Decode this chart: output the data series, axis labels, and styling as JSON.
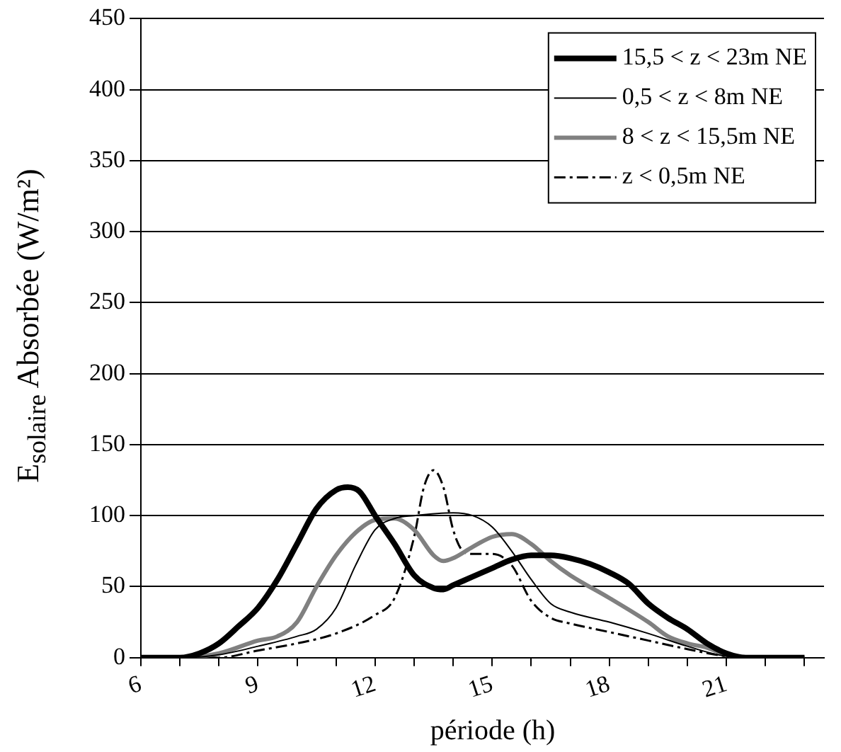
{
  "chart_data": {
    "type": "line",
    "xlabel": "période (h)",
    "ylabel": "E$_{solaire}$ Absorbée (W/m²)",
    "xlim": [
      6,
      23.5
    ],
    "xticks": [
      6,
      {
        "value": 7,
        "label": null
      },
      {
        "value": 8,
        "label": null
      },
      9,
      {
        "value": 10,
        "label": null
      },
      {
        "value": 11,
        "label": null
      },
      12,
      {
        "value": 13,
        "label": null
      },
      {
        "value": 14,
        "label": null
      },
      15,
      {
        "value": 16,
        "label": null
      },
      {
        "value": 17,
        "label": null
      },
      18,
      {
        "value": 19,
        "label": null
      },
      {
        "value": 20,
        "label": null
      },
      21,
      {
        "value": 22,
        "label": null
      },
      {
        "value": 23,
        "label": null
      }
    ],
    "ylim": [
      0,
      450
    ],
    "yticks": [
      0,
      50,
      100,
      150,
      200,
      250,
      300,
      350,
      400,
      450
    ],
    "grid": "y",
    "legend": "top right",
    "marker": "none",
    "series": [
      {
        "name": "15,5 < z < 23m NE",
        "color": "#000000",
        "x": [
          6,
          7,
          7.5,
          8,
          8.5,
          9,
          9.5,
          10,
          10.5,
          11,
          11.3,
          11.6,
          12,
          12.5,
          13,
          13.5,
          13.75,
          14,
          14.5,
          15,
          15.5,
          16,
          16.5,
          17,
          17.5,
          18,
          18.5,
          19,
          19.5,
          20,
          20.5,
          21,
          21.5,
          22,
          23
        ],
        "values": [
          0,
          0,
          3,
          10,
          22,
          35,
          55,
          80,
          105,
          118,
          120,
          117,
          100,
          80,
          58,
          49,
          48,
          51,
          57,
          63,
          69,
          72,
          72,
          70,
          66,
          60,
          52,
          38,
          28,
          20,
          10,
          3,
          0,
          0,
          0
        ]
      },
      {
        "name": "0,5 < z < 8m NE",
        "color": "#000000",
        "x": [
          6,
          7,
          8,
          9,
          10,
          10.5,
          11,
          11.5,
          12,
          12.5,
          13,
          14,
          14.5,
          15,
          15.5,
          16,
          16.5,
          17,
          18,
          19,
          20,
          21,
          22,
          23
        ],
        "values": [
          0,
          0,
          2,
          8,
          15,
          20,
          35,
          65,
          90,
          98,
          100,
          102,
          100,
          92,
          75,
          55,
          38,
          32,
          25,
          17,
          8,
          1,
          0,
          0
        ]
      },
      {
        "name": "8 < z < 15,5m NE",
        "color": "#808080",
        "x": [
          6,
          7,
          8,
          9,
          9.5,
          10,
          10.5,
          11,
          11.5,
          12,
          12.5,
          13,
          13.5,
          13.75,
          14,
          14.5,
          15,
          15.5,
          16,
          16.5,
          17,
          18,
          19,
          19.5,
          20,
          20.5,
          21,
          22,
          23
        ],
        "values": [
          0,
          0,
          3,
          12,
          15,
          25,
          50,
          72,
          88,
          97,
          98,
          90,
          72,
          68,
          70,
          78,
          85,
          87,
          80,
          68,
          58,
          42,
          25,
          15,
          10,
          7,
          2,
          0,
          0
        ]
      },
      {
        "name": "z < 0,5m NE",
        "color": "#000000",
        "line_style": "dashed",
        "x": [
          6,
          7,
          8,
          9,
          10,
          11,
          12,
          12.5,
          13,
          13.25,
          13.5,
          13.75,
          14,
          14.25,
          14.5,
          15,
          15.5,
          16,
          16.5,
          17,
          18,
          19,
          20,
          21,
          22,
          23
        ],
        "values": [
          0,
          0,
          0,
          5,
          10,
          17,
          30,
          42,
          85,
          120,
          132,
          120,
          90,
          75,
          73,
          73,
          65,
          40,
          28,
          24,
          18,
          12,
          6,
          1,
          0,
          0
        ]
      }
    ]
  }
}
